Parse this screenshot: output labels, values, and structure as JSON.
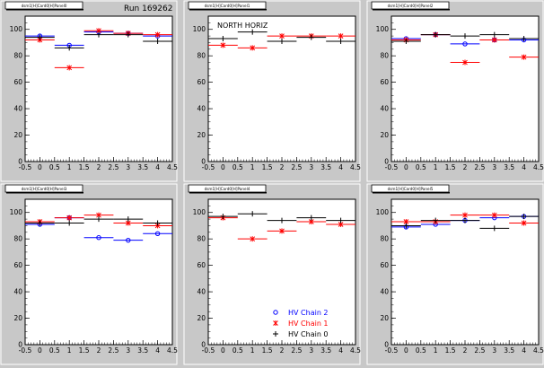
{
  "run_label": "Run 169262",
  "legend": {
    "entries": [
      {
        "label": "HV Chain 2",
        "marker": "circle",
        "color": "#0000ff"
      },
      {
        "label": "HV Chain 1",
        "marker": "star",
        "color": "#ff0000"
      },
      {
        "label": "HV Chain 0",
        "marker": "cross",
        "color": "#000000"
      }
    ]
  },
  "colors": {
    "chain2": "#0000ff",
    "chain1": "#ff0000",
    "chain0": "#000000",
    "background": "#c8c8c8"
  },
  "chart_data": [
    {
      "type": "scatter",
      "title": "dsm1[H]Card0[H]Panel0",
      "annotation": "",
      "xlim": [
        -0.5,
        4.5
      ],
      "ylim": [
        0,
        110
      ],
      "xticks": [
        "-0.5",
        "0",
        "0.5",
        "1",
        "1.5",
        "2",
        "2.5",
        "3",
        "3.5",
        "4",
        "4.5"
      ],
      "yticks": [
        "0",
        "20",
        "40",
        "60",
        "80",
        "100"
      ],
      "series": [
        {
          "key": "chain2",
          "x": [
            0,
            1,
            2,
            3,
            4
          ],
          "y": [
            95,
            88,
            98,
            97,
            95
          ],
          "xerr": 0.5
        },
        {
          "key": "chain1",
          "x": [
            0,
            1,
            2,
            3,
            4
          ],
          "y": [
            92,
            71,
            99,
            97,
            96
          ],
          "xerr": 0.5
        },
        {
          "key": "chain0",
          "x": [
            0,
            1,
            2,
            3,
            4
          ],
          "y": [
            94,
            86,
            96,
            96,
            91
          ],
          "xerr": 0.5
        }
      ]
    },
    {
      "type": "scatter",
      "title": "dsm1[H]Card0[H]Panel1",
      "annotation": "NORTH HORIZ",
      "xlim": [
        -0.5,
        4.5
      ],
      "ylim": [
        0,
        110
      ],
      "xticks": [
        "-0.5",
        "0",
        "0.5",
        "1",
        "1.5",
        "2",
        "2.5",
        "3",
        "3.5",
        "4",
        "4.5"
      ],
      "yticks": [
        "0",
        "20",
        "40",
        "60",
        "80",
        "100"
      ],
      "series": [
        {
          "key": "chain1",
          "x": [
            0,
            1,
            2,
            3,
            4
          ],
          "y": [
            88,
            86,
            95,
            95,
            95
          ],
          "xerr": 0.5
        },
        {
          "key": "chain0",
          "x": [
            0,
            1,
            2,
            3,
            4
          ],
          "y": [
            93,
            98,
            91,
            94,
            91
          ],
          "xerr": 0.5
        }
      ]
    },
    {
      "type": "scatter",
      "title": "dsm1[H]Card0[H]Panel2",
      "annotation": "",
      "xlim": [
        -0.5,
        4.5
      ],
      "ylim": [
        0,
        110
      ],
      "xticks": [
        "-0.5",
        "0",
        "0.5",
        "1",
        "1.5",
        "2",
        "2.5",
        "3",
        "3.5",
        "4",
        "4.5"
      ],
      "yticks": [
        "0",
        "20",
        "40",
        "60",
        "80",
        "100"
      ],
      "series": [
        {
          "key": "chain2",
          "x": [
            0,
            1,
            2,
            3,
            4
          ],
          "y": [
            93,
            96,
            89,
            92,
            92
          ],
          "xerr": 0.5
        },
        {
          "key": "chain1",
          "x": [
            0,
            1,
            2,
            3,
            4
          ],
          "y": [
            92,
            96,
            75,
            92,
            79
          ],
          "xerr": 0.5
        },
        {
          "key": "chain0",
          "x": [
            0,
            1,
            2,
            3,
            4
          ],
          "y": [
            91,
            96,
            95,
            96,
            93
          ],
          "xerr": 0.5
        }
      ]
    },
    {
      "type": "scatter",
      "title": "dsm1[H]Card0[H]Panel3",
      "annotation": "",
      "xlim": [
        -0.5,
        4.5
      ],
      "ylim": [
        0,
        110
      ],
      "xticks": [
        "-0.5",
        "0",
        "0.5",
        "1",
        "1.5",
        "2",
        "2.5",
        "3",
        "3.5",
        "4",
        "4.5"
      ],
      "yticks": [
        "0",
        "20",
        "40",
        "60",
        "80",
        "100"
      ],
      "series": [
        {
          "key": "chain2",
          "x": [
            0,
            1,
            2,
            3,
            4
          ],
          "y": [
            91,
            96,
            81,
            79,
            84
          ],
          "xerr": 0.5
        },
        {
          "key": "chain1",
          "x": [
            0,
            1,
            2,
            3,
            4
          ],
          "y": [
            93,
            96,
            98,
            92,
            90
          ],
          "xerr": 0.5
        },
        {
          "key": "chain0",
          "x": [
            0,
            1,
            2,
            3,
            4
          ],
          "y": [
            92,
            92,
            95,
            95,
            92
          ],
          "xerr": 0.5
        }
      ]
    },
    {
      "type": "scatter",
      "title": "dsm1[H]Card0[H]Panel4",
      "annotation": "",
      "xlim": [
        -0.5,
        4.5
      ],
      "ylim": [
        0,
        110
      ],
      "xticks": [
        "-0.5",
        "0",
        "0.5",
        "1",
        "1.5",
        "2",
        "2.5",
        "3",
        "3.5",
        "4",
        "4.5"
      ],
      "yticks": [
        "0",
        "20",
        "40",
        "60",
        "80",
        "100"
      ],
      "series": [
        {
          "key": "chain1",
          "x": [
            0,
            1,
            2,
            3,
            4
          ],
          "y": [
            96,
            80,
            86,
            93,
            91
          ],
          "xerr": 0.5
        },
        {
          "key": "chain0",
          "x": [
            0,
            1,
            2,
            3,
            4
          ],
          "y": [
            97,
            99,
            94,
            96,
            94
          ],
          "xerr": 0.5
        }
      ]
    },
    {
      "type": "scatter",
      "title": "dsm1[H]Card0[H]Panel5",
      "annotation": "",
      "xlim": [
        -0.5,
        4.5
      ],
      "ylim": [
        0,
        110
      ],
      "xticks": [
        "-0.5",
        "0",
        "0.5",
        "1",
        "1.5",
        "2",
        "2.5",
        "3",
        "3.5",
        "4",
        "4.5"
      ],
      "yticks": [
        "0",
        "20",
        "40",
        "60",
        "80",
        "100"
      ],
      "series": [
        {
          "key": "chain2",
          "x": [
            0,
            1,
            2,
            3,
            4
          ],
          "y": [
            89,
            91,
            94,
            96,
            97
          ],
          "xerr": 0.5
        },
        {
          "key": "chain1",
          "x": [
            0,
            1,
            2,
            3,
            4
          ],
          "y": [
            93,
            93,
            98,
            98,
            92
          ],
          "xerr": 0.5
        },
        {
          "key": "chain0",
          "x": [
            0,
            1,
            2,
            3,
            4
          ],
          "y": [
            90,
            94,
            94,
            88,
            97
          ],
          "xerr": 0.5
        }
      ]
    }
  ]
}
